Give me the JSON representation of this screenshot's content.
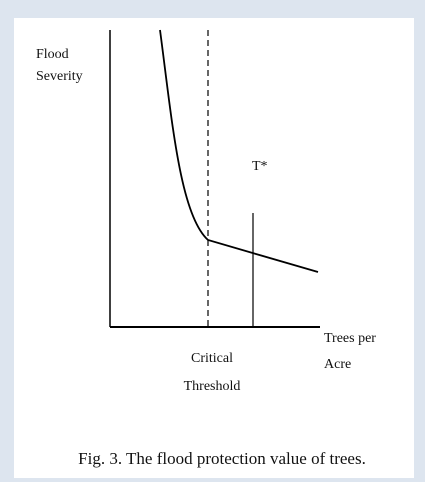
{
  "diagram": {
    "y_axis_label": [
      "Flood",
      "Severity"
    ],
    "x_axis_label": [
      "Trees per",
      "Acre"
    ],
    "threshold_label": [
      "Critical",
      "Threshold"
    ],
    "marker_label": "T*",
    "caption": "Fig. 3. The flood protection value of trees."
  }
}
